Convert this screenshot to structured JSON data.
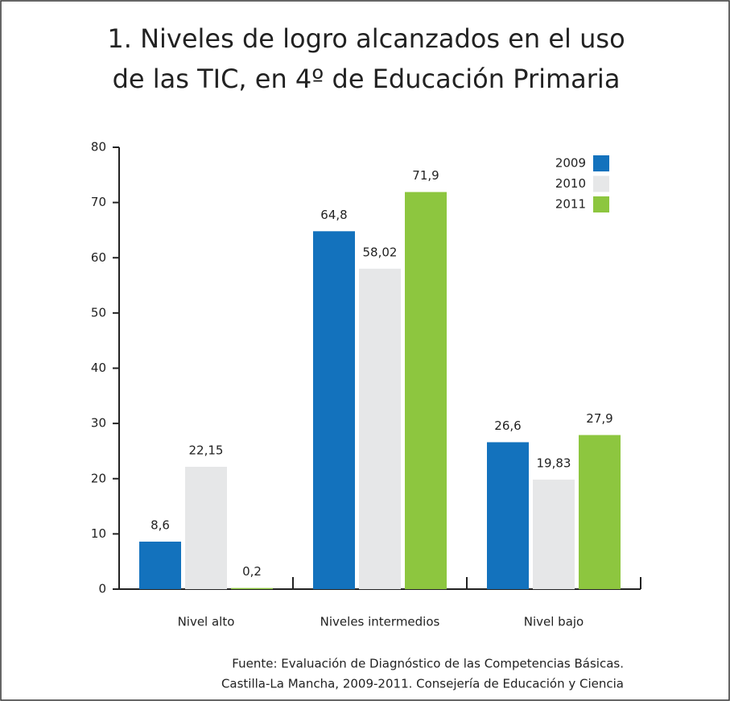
{
  "chart_data": {
    "type": "bar",
    "title": [
      "1. Niveles de logro alcanzados en el uso",
      "de las TIC, en 4º de Educación Primaria"
    ],
    "categories": [
      "Nivel alto",
      "Niveles intermedios",
      "Nivel bajo"
    ],
    "series": [
      {
        "name": "2009",
        "color": "#1372bd",
        "values": [
          8.6,
          64.8,
          26.6
        ],
        "value_labels": [
          "8,6",
          "64,8",
          "26,6"
        ]
      },
      {
        "name": "2010",
        "color": "#e6e7e8",
        "values": [
          22.15,
          58.02,
          19.83
        ],
        "value_labels": [
          "22,15",
          "58,02",
          "19,83"
        ]
      },
      {
        "name": "2011",
        "color": "#8dc63f",
        "values": [
          0.2,
          71.9,
          27.9
        ],
        "value_labels": [
          "0,2",
          "71,9",
          "27,9"
        ]
      }
    ],
    "ylim": [
      0,
      80
    ],
    "yticks": [
      0,
      10,
      20,
      30,
      40,
      50,
      60,
      70,
      80
    ],
    "grid": false,
    "legend": "upper right",
    "source": [
      "Fuente: Evaluación de Diagnóstico de las Competencias Básicas.",
      "Castilla-La Mancha, 2009-2011. Consejería de Educación y Ciencia"
    ]
  }
}
